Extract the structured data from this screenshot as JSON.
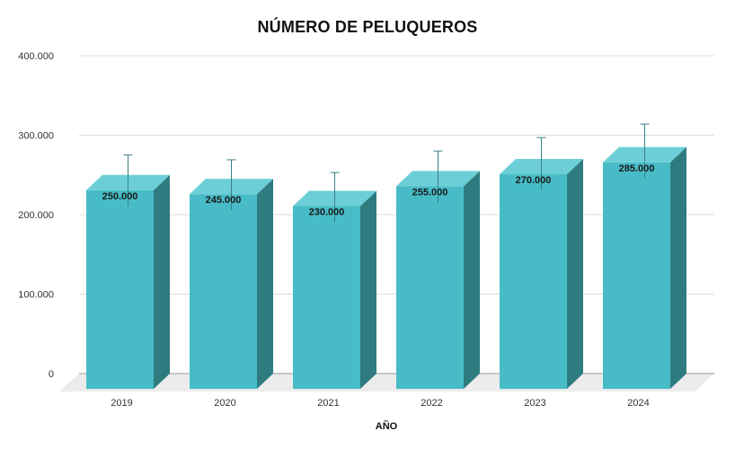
{
  "chart_data": {
    "type": "bar",
    "title": "NÚMERO DE PELUQUEROS",
    "xlabel": "AÑO",
    "ylabel": "",
    "categories": [
      "2019",
      "2020",
      "2021",
      "2022",
      "2023",
      "2024"
    ],
    "values": [
      250000,
      245000,
      230000,
      255000,
      270000,
      285000
    ],
    "value_labels": [
      "250.000",
      "245.000",
      "230.000",
      "255.000",
      "270.000",
      "285.000"
    ],
    "error_upper": [
      275000,
      269000,
      253000,
      280000,
      297000,
      314000
    ],
    "ylim": [
      0,
      400000
    ],
    "yticks": [
      0,
      100000,
      200000,
      300000,
      400000
    ],
    "ytick_labels": [
      "0",
      "100.000",
      "200.000",
      "300.000",
      "400.000"
    ],
    "grid": true,
    "legend": "none",
    "style": "3d-column"
  },
  "colors": {
    "bar_front": "#47bcc7",
    "bar_top": "#6ccfd7",
    "bar_side": "#2e7c80",
    "floor": "#ececec",
    "grid": "#dcdcdc",
    "error_bar": "#3a7f84"
  }
}
